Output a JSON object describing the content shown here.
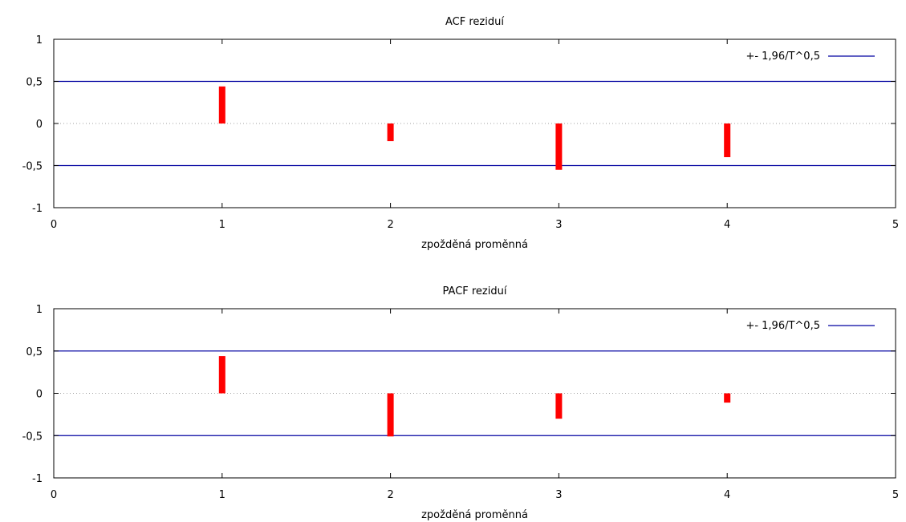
{
  "chart_data": [
    {
      "type": "bar",
      "title": "ACF reziduí",
      "xlabel": "zpožděná proměnná",
      "ylabel": "",
      "x": [
        1,
        2,
        3,
        4
      ],
      "values": [
        0.44,
        -0.21,
        -0.55,
        -0.4
      ],
      "xlim": [
        0,
        5
      ],
      "ylim": [
        -1,
        1
      ],
      "xticks": [
        0,
        1,
        2,
        3,
        4,
        5
      ],
      "yticks": [
        -1,
        -0.5,
        0,
        0.5,
        1
      ],
      "xtick_labels": [
        "0",
        "1",
        "2",
        "3",
        "4",
        "5"
      ],
      "ytick_labels": [
        "-1",
        "-0,5",
        "0",
        "0,5",
        "1"
      ],
      "bands": [
        0.5,
        -0.5
      ],
      "zero_line": "dotted",
      "legend": {
        "label": "+- 1,96/T^0,5",
        "position": "top-right"
      },
      "grid": false,
      "bar_color": "#ff0000",
      "band_color": "#0000a0"
    },
    {
      "type": "bar",
      "title": "PACF reziduí",
      "xlabel": "zpožděná proměnná",
      "ylabel": "",
      "x": [
        1,
        2,
        3,
        4
      ],
      "values": [
        0.44,
        -0.51,
        -0.3,
        -0.11
      ],
      "xlim": [
        0,
        5
      ],
      "ylim": [
        -1,
        1
      ],
      "xticks": [
        0,
        1,
        2,
        3,
        4,
        5
      ],
      "yticks": [
        -1,
        -0.5,
        0,
        0.5,
        1
      ],
      "xtick_labels": [
        "0",
        "1",
        "2",
        "3",
        "4",
        "5"
      ],
      "ytick_labels": [
        "-1",
        "-0,5",
        "0",
        "0,5",
        "1"
      ],
      "bands": [
        0.5,
        -0.5
      ],
      "zero_line": "dotted",
      "legend": {
        "label": "+- 1,96/T^0,5",
        "position": "top-right"
      },
      "grid": false,
      "bar_color": "#ff0000",
      "band_color": "#0000a0"
    }
  ]
}
